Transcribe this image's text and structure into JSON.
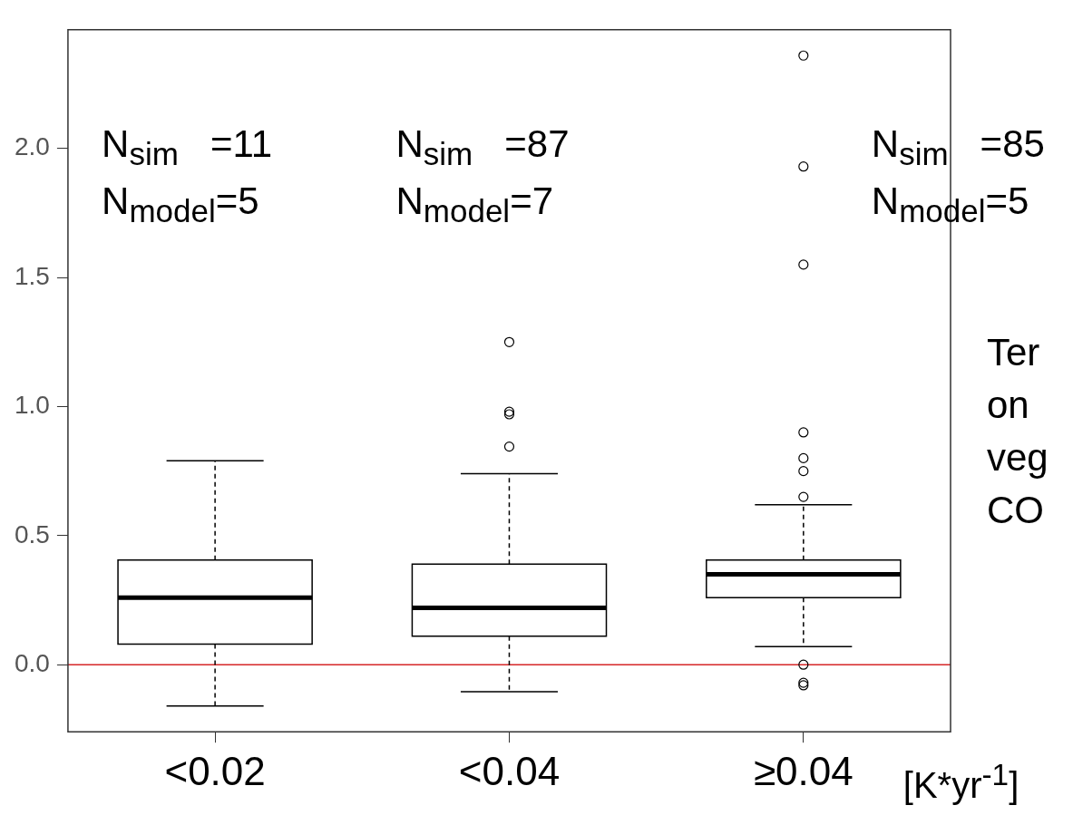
{
  "chart_data": {
    "type": "box",
    "categories": [
      "<0.02",
      "<0.04",
      "≥0.04"
    ],
    "xlabel": "[K*yr$^{-1}$]",
    "boxes": [
      {
        "low": -0.16,
        "q1": 0.08,
        "median": 0.26,
        "q3": 0.405,
        "high": 0.79
      },
      {
        "low": -0.105,
        "q1": 0.11,
        "median": 0.22,
        "q3": 0.39,
        "high": 0.74,
        "outliers": [
          1.25,
          0.98,
          0.97,
          0.845
        ]
      },
      {
        "low": 0.07,
        "q1": 0.26,
        "median": 0.35,
        "q3": 0.405,
        "high": 0.62,
        "outliers": [
          2.36,
          1.93,
          1.55,
          0.9,
          0.8,
          0.75,
          0.65,
          0.0,
          -0.07,
          -0.08
        ]
      }
    ],
    "ylim": [
      -0.26,
      2.46
    ],
    "yticks": [
      {
        "value": 0,
        "label": "0.0"
      },
      0.5,
      {
        "value": 1,
        "label": "1.0"
      },
      1.5,
      {
        "value": 2,
        "label": "2.0"
      }
    ],
    "ref_lines": [
      {
        "axis": "y",
        "value": 0,
        "color": "#d62728"
      }
    ],
    "marker": "circle",
    "annotations": [
      "N$_{sim}$   =11\nN$_{model}$=5",
      "N$_{sim}$   =87\nN$_{model}$=7",
      "N$_{sim}$   =85\nN$_{model}$=5",
      "Ter",
      "on",
      "veg",
      "CO"
    ]
  }
}
